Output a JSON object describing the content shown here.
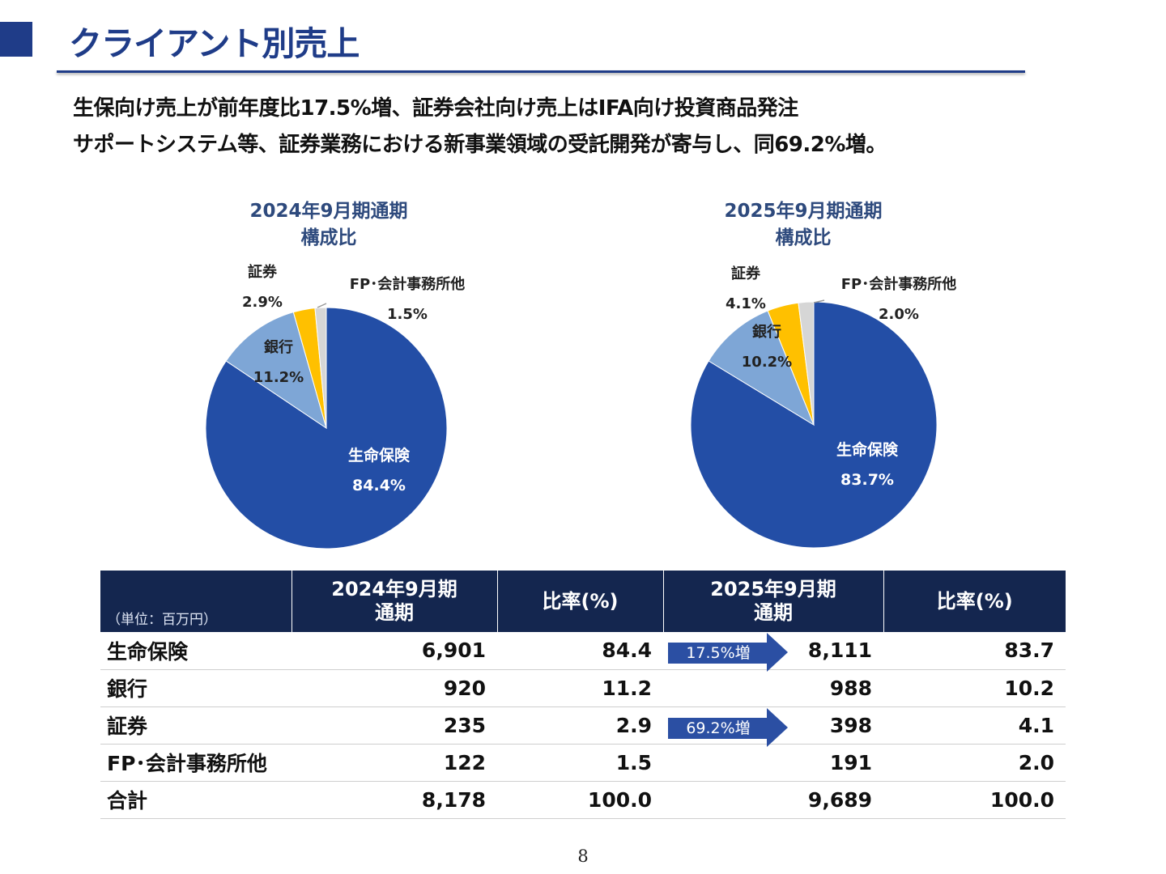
{
  "header": {
    "title": "クライアント別売上"
  },
  "summary": {
    "line1": "生保向け売上が前年度比17.5%増、証券会社向け売上はIFA向け投資商品発注",
    "line2": "サポートシステム等、証券業務における新事業領域の受託開発が寄与し、同69.2%増。"
  },
  "colors": {
    "life": "#234ea6",
    "bank": "#7ea6d6",
    "securities": "#ffc000",
    "fp": "#d6d6d6",
    "accent": "#1f3c88",
    "table_header": "#14264f"
  },
  "chart_data": [
    {
      "type": "pie",
      "title_line1": "2024年9月期通期",
      "title_line2": "構成比",
      "slices": [
        {
          "label": "生命保険",
          "value": 84.4,
          "value_label": "84.4%",
          "color": "#234ea6"
        },
        {
          "label": "銀行",
          "value": 11.2,
          "value_label": "11.2%",
          "color": "#7ea6d6"
        },
        {
          "label": "証券",
          "value": 2.9,
          "value_label": "2.9%",
          "color": "#ffc000"
        },
        {
          "label": "FP･会計事務所他",
          "value": 1.5,
          "value_label": "1.5%",
          "color": "#d6d6d6"
        }
      ]
    },
    {
      "type": "pie",
      "title_line1": "2025年9月期通期",
      "title_line2": "構成比",
      "slices": [
        {
          "label": "生命保険",
          "value": 83.7,
          "value_label": "83.7%",
          "color": "#234ea6"
        },
        {
          "label": "銀行",
          "value": 10.2,
          "value_label": "10.2%",
          "color": "#7ea6d6"
        },
        {
          "label": "証券",
          "value": 4.1,
          "value_label": "4.1%",
          "color": "#ffc000"
        },
        {
          "label": "FP･会計事務所他",
          "value": 2.0,
          "value_label": "2.0%",
          "color": "#d6d6d6"
        }
      ]
    }
  ],
  "table": {
    "unit": "（単位：百万円）",
    "headers": {
      "y2024_line1": "2024年9月期",
      "y2024_line2": "通期",
      "ratio2024": "比率(%)",
      "y2025_line1": "2025年9月期",
      "y2025_line2": "通期",
      "ratio2025": "比率(%)"
    },
    "rows": [
      {
        "name": "生命保険",
        "v2024": "6,901",
        "r2024": "84.4",
        "growth": "17.5%増",
        "v2025": "8,111",
        "r2025": "83.7"
      },
      {
        "name": "銀行",
        "v2024": "920",
        "r2024": "11.2",
        "growth": "",
        "v2025": "988",
        "r2025": "10.2"
      },
      {
        "name": "証券",
        "v2024": "235",
        "r2024": "2.9",
        "growth": "69.2%増",
        "v2025": "398",
        "r2025": "4.1"
      },
      {
        "name": "FP･会計事務所他",
        "v2024": "122",
        "r2024": "1.5",
        "growth": "",
        "v2025": "191",
        "r2025": "2.0"
      },
      {
        "name": "合計",
        "v2024": "8,178",
        "r2024": "100.0",
        "growth": "",
        "v2025": "9,689",
        "r2025": "100.0"
      }
    ]
  },
  "footer": {
    "page_number": "8"
  }
}
